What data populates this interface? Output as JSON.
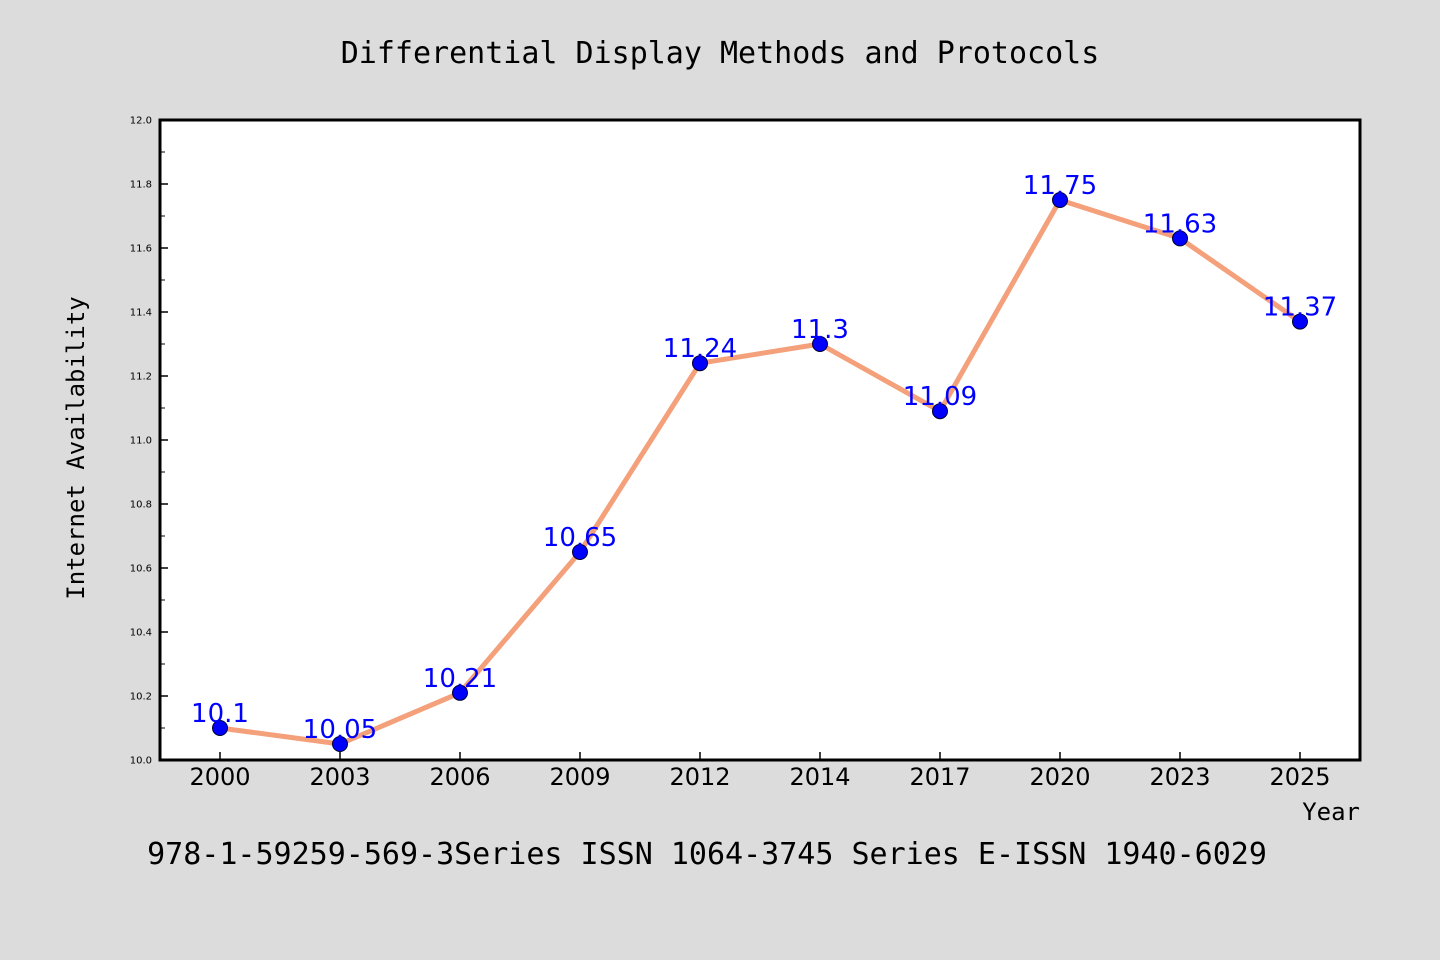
{
  "chart_data": {
    "type": "line",
    "title": "Differential Display Methods and Protocols",
    "xlabel": "Year",
    "ylabel": "Internet Availability",
    "categories": [
      "2000",
      "2003",
      "2006",
      "2009",
      "2012",
      "2014",
      "2017",
      "2020",
      "2023",
      "2025"
    ],
    "values": [
      10.1,
      10.05,
      10.21,
      10.65,
      11.24,
      11.3,
      11.09,
      11.75,
      11.63,
      11.37
    ],
    "data_labels": [
      "10.1",
      "10.05",
      "10.21",
      "10.65",
      "11.24",
      "11.3",
      "11.09",
      "11.75",
      "11.63",
      "11.37"
    ],
    "ylim": [
      10.0,
      12.0
    ],
    "yticks": [
      "10.0",
      "10.2",
      "10.4",
      "10.6",
      "10.8",
      "11.0",
      "11.2",
      "11.4",
      "11.6",
      "11.8",
      "12.0"
    ],
    "grid": false,
    "line_color": "#f4a07a",
    "marker_color": "#0000ff",
    "label_color": "#0000ff",
    "footer": "978-1-59259-569-3Series ISSN 1064-3745 Series E-ISSN 1940-6029"
  }
}
